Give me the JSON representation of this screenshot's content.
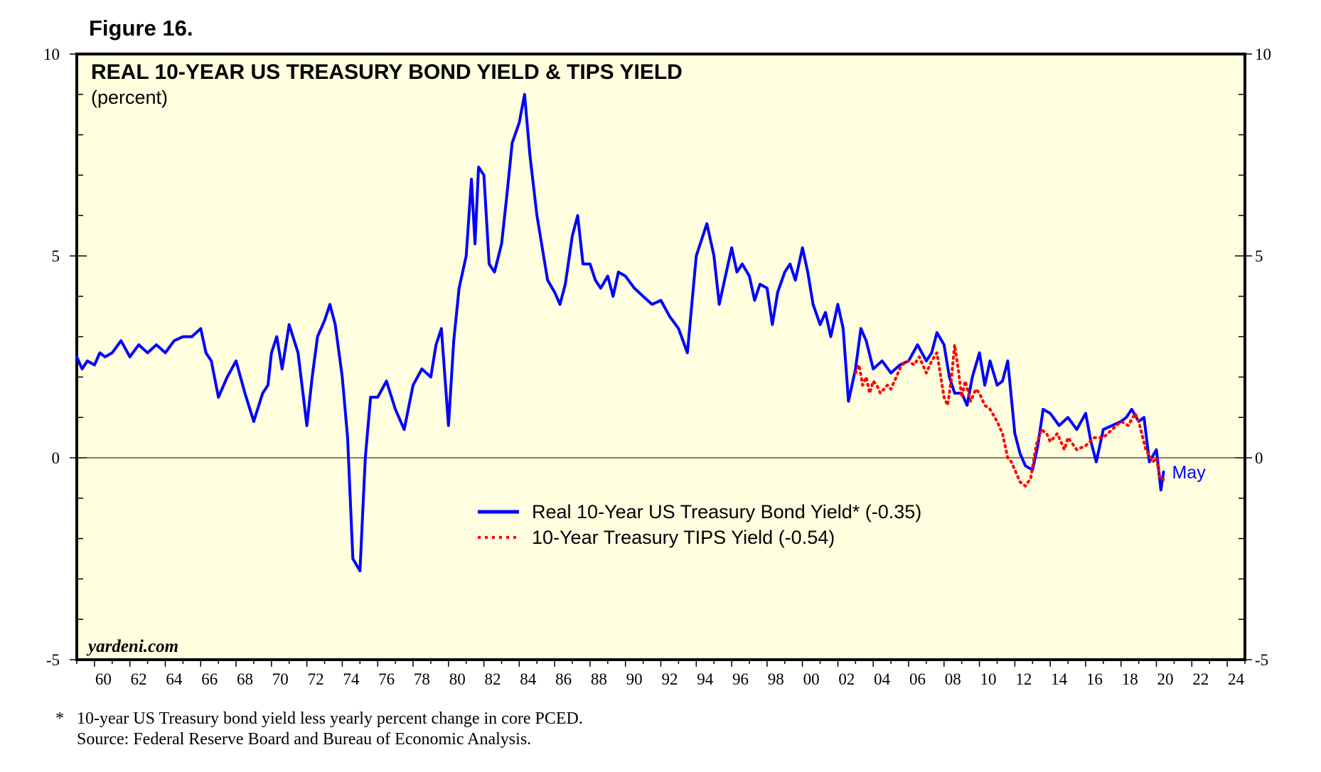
{
  "figure_label": "Figure 16.",
  "footnote": "10-year US Treasury bond yield less yearly percent change in core PCED.",
  "source": "Source: Federal Reserve Board and Bureau of Economic Analysis.",
  "footnote_marker": "*",
  "chart_data": {
    "type": "line",
    "title": "REAL 10-YEAR US TREASURY BOND YIELD & TIPS YIELD",
    "subtitle": "(percent)",
    "watermark": "yardeni.com",
    "end_annotation": "May",
    "xlim": [
      1959,
      2025
    ],
    "ylim": [
      -5,
      10
    ],
    "x_ticks": [
      1960,
      1962,
      1964,
      1966,
      1968,
      1970,
      1972,
      1974,
      1976,
      1978,
      1980,
      1982,
      1984,
      1986,
      1988,
      1990,
      1992,
      1994,
      1996,
      1998,
      2000,
      2002,
      2004,
      2006,
      2008,
      2010,
      2012,
      2014,
      2016,
      2018,
      2020,
      2022,
      2024
    ],
    "x_tick_labels": [
      "60",
      "62",
      "64",
      "66",
      "68",
      "70",
      "72",
      "74",
      "76",
      "78",
      "80",
      "82",
      "84",
      "86",
      "88",
      "90",
      "92",
      "94",
      "96",
      "98",
      "00",
      "02",
      "04",
      "06",
      "08",
      "10",
      "12",
      "14",
      "16",
      "18",
      "20",
      "22",
      "24"
    ],
    "y_ticks": [
      -5,
      0,
      5,
      10
    ],
    "y_tick_labels": [
      "-5",
      "0",
      "5",
      "10"
    ],
    "zero_line": true,
    "legend_position": "lower-center",
    "colors": {
      "background": "#ffffe0",
      "real_yield": "#0000ff",
      "tips_yield": "#ff0000",
      "annotation": "#0000ff"
    },
    "series": [
      {
        "name": "Real 10-Year US Treasury Bond Yield* (-0.35)",
        "style": "solid",
        "x": [
          1959.0,
          1959.3,
          1959.6,
          1960.0,
          1960.3,
          1960.6,
          1961.0,
          1961.5,
          1962.0,
          1962.5,
          1963.0,
          1963.5,
          1964.0,
          1964.5,
          1965.0,
          1965.5,
          1966.0,
          1966.3,
          1966.6,
          1967.0,
          1967.5,
          1968.0,
          1968.5,
          1969.0,
          1969.5,
          1969.8,
          1970.0,
          1970.3,
          1970.6,
          1971.0,
          1971.5,
          1972.0,
          1972.3,
          1972.6,
          1973.0,
          1973.3,
          1973.6,
          1974.0,
          1974.3,
          1974.6,
          1975.0,
          1975.3,
          1975.6,
          1976.0,
          1976.5,
          1977.0,
          1977.5,
          1978.0,
          1978.5,
          1979.0,
          1979.3,
          1979.6,
          1980.0,
          1980.3,
          1980.6,
          1981.0,
          1981.3,
          1981.5,
          1981.7,
          1982.0,
          1982.3,
          1982.6,
          1983.0,
          1983.3,
          1983.6,
          1984.0,
          1984.3,
          1984.6,
          1985.0,
          1985.3,
          1985.6,
          1986.0,
          1986.3,
          1986.6,
          1987.0,
          1987.3,
          1987.6,
          1988.0,
          1988.3,
          1988.6,
          1989.0,
          1989.3,
          1989.6,
          1990.0,
          1990.5,
          1991.0,
          1991.5,
          1992.0,
          1992.5,
          1993.0,
          1993.5,
          1994.0,
          1994.3,
          1994.6,
          1995.0,
          1995.3,
          1995.6,
          1996.0,
          1996.3,
          1996.6,
          1997.0,
          1997.3,
          1997.6,
          1998.0,
          1998.3,
          1998.6,
          1999.0,
          1999.3,
          1999.6,
          2000.0,
          2000.3,
          2000.6,
          2001.0,
          2001.3,
          2001.6,
          2002.0,
          2002.3,
          2002.6,
          2003.0,
          2003.3,
          2003.6,
          2004.0,
          2004.5,
          2005.0,
          2005.5,
          2006.0,
          2006.5,
          2007.0,
          2007.3,
          2007.6,
          2008.0,
          2008.3,
          2008.6,
          2009.0,
          2009.3,
          2009.6,
          2010.0,
          2010.3,
          2010.6,
          2011.0,
          2011.3,
          2011.6,
          2012.0,
          2012.3,
          2012.6,
          2013.0,
          2013.3,
          2013.6,
          2014.0,
          2014.5,
          2015.0,
          2015.5,
          2016.0,
          2016.3,
          2016.6,
          2017.0,
          2017.5,
          2018.0,
          2018.3,
          2018.6,
          2019.0,
          2019.3,
          2019.6,
          2020.0,
          2020.25,
          2020.4
        ],
        "values": [
          2.5,
          2.2,
          2.4,
          2.3,
          2.6,
          2.5,
          2.6,
          2.9,
          2.5,
          2.8,
          2.6,
          2.8,
          2.6,
          2.9,
          3.0,
          3.0,
          3.2,
          2.6,
          2.4,
          1.5,
          2.0,
          2.4,
          1.6,
          0.9,
          1.6,
          1.8,
          2.6,
          3.0,
          2.2,
          3.3,
          2.6,
          0.8,
          2.0,
          3.0,
          3.4,
          3.8,
          3.3,
          2.0,
          0.5,
          -2.5,
          -2.8,
          0.0,
          1.5,
          1.5,
          1.9,
          1.2,
          0.7,
          1.8,
          2.2,
          2.0,
          2.8,
          3.2,
          0.8,
          2.9,
          4.2,
          5.0,
          6.9,
          5.3,
          7.2,
          7.0,
          4.8,
          4.6,
          5.3,
          6.5,
          7.8,
          8.3,
          9.0,
          7.5,
          6.0,
          5.2,
          4.4,
          4.1,
          3.8,
          4.3,
          5.5,
          6.0,
          4.8,
          4.8,
          4.4,
          4.2,
          4.5,
          4.0,
          4.6,
          4.5,
          4.2,
          4.0,
          3.8,
          3.9,
          3.5,
          3.2,
          2.6,
          5.0,
          5.4,
          5.8,
          5.0,
          3.8,
          4.4,
          5.2,
          4.6,
          4.8,
          4.5,
          3.9,
          4.3,
          4.2,
          3.3,
          4.1,
          4.6,
          4.8,
          4.4,
          5.2,
          4.6,
          3.8,
          3.3,
          3.6,
          3.0,
          3.8,
          3.2,
          1.4,
          2.2,
          3.2,
          2.9,
          2.2,
          2.4,
          2.1,
          2.3,
          2.4,
          2.8,
          2.4,
          2.6,
          3.1,
          2.8,
          2.0,
          1.6,
          1.6,
          1.3,
          2.0,
          2.6,
          1.8,
          2.4,
          1.8,
          1.9,
          2.4,
          0.6,
          0.1,
          -0.2,
          -0.3,
          0.3,
          1.2,
          1.1,
          0.8,
          1.0,
          0.7,
          1.1,
          0.4,
          -0.1,
          0.7,
          0.8,
          0.9,
          1.0,
          1.2,
          0.9,
          1.0,
          -0.1,
          0.2,
          -0.8,
          -0.35
        ]
      },
      {
        "name": "10-Year Treasury TIPS Yield (-0.54)",
        "style": "dotted",
        "x": [
          2003.0,
          2003.2,
          2003.4,
          2003.6,
          2003.8,
          2004.0,
          2004.2,
          2004.4,
          2004.6,
          2004.8,
          2005.0,
          2005.3,
          2005.6,
          2006.0,
          2006.3,
          2006.6,
          2007.0,
          2007.3,
          2007.6,
          2008.0,
          2008.2,
          2008.4,
          2008.6,
          2008.8,
          2009.0,
          2009.2,
          2009.5,
          2009.8,
          2010.0,
          2010.3,
          2010.6,
          2011.0,
          2011.3,
          2011.6,
          2011.8,
          2012.0,
          2012.3,
          2012.6,
          2012.9,
          2013.2,
          2013.5,
          2013.8,
          2014.0,
          2014.4,
          2014.8,
          2015.0,
          2015.5,
          2016.0,
          2016.5,
          2017.0,
          2017.5,
          2018.0,
          2018.4,
          2018.8,
          2019.0,
          2019.4,
          2019.8,
          2020.0,
          2020.2,
          2020.4
        ],
        "values": [
          2.1,
          2.3,
          1.8,
          2.0,
          1.6,
          1.9,
          1.8,
          1.6,
          1.7,
          1.8,
          1.7,
          2.0,
          2.3,
          2.4,
          2.3,
          2.5,
          2.1,
          2.4,
          2.6,
          1.5,
          1.3,
          1.9,
          2.8,
          2.2,
          1.5,
          1.9,
          1.4,
          1.7,
          1.6,
          1.3,
          1.2,
          0.9,
          0.6,
          0.0,
          -0.1,
          -0.3,
          -0.6,
          -0.7,
          -0.5,
          0.3,
          0.7,
          0.6,
          0.4,
          0.6,
          0.2,
          0.5,
          0.2,
          0.3,
          0.5,
          0.5,
          0.7,
          0.9,
          0.8,
          1.1,
          0.9,
          0.2,
          -0.1,
          0.0,
          -0.5,
          -0.54
        ]
      }
    ]
  }
}
